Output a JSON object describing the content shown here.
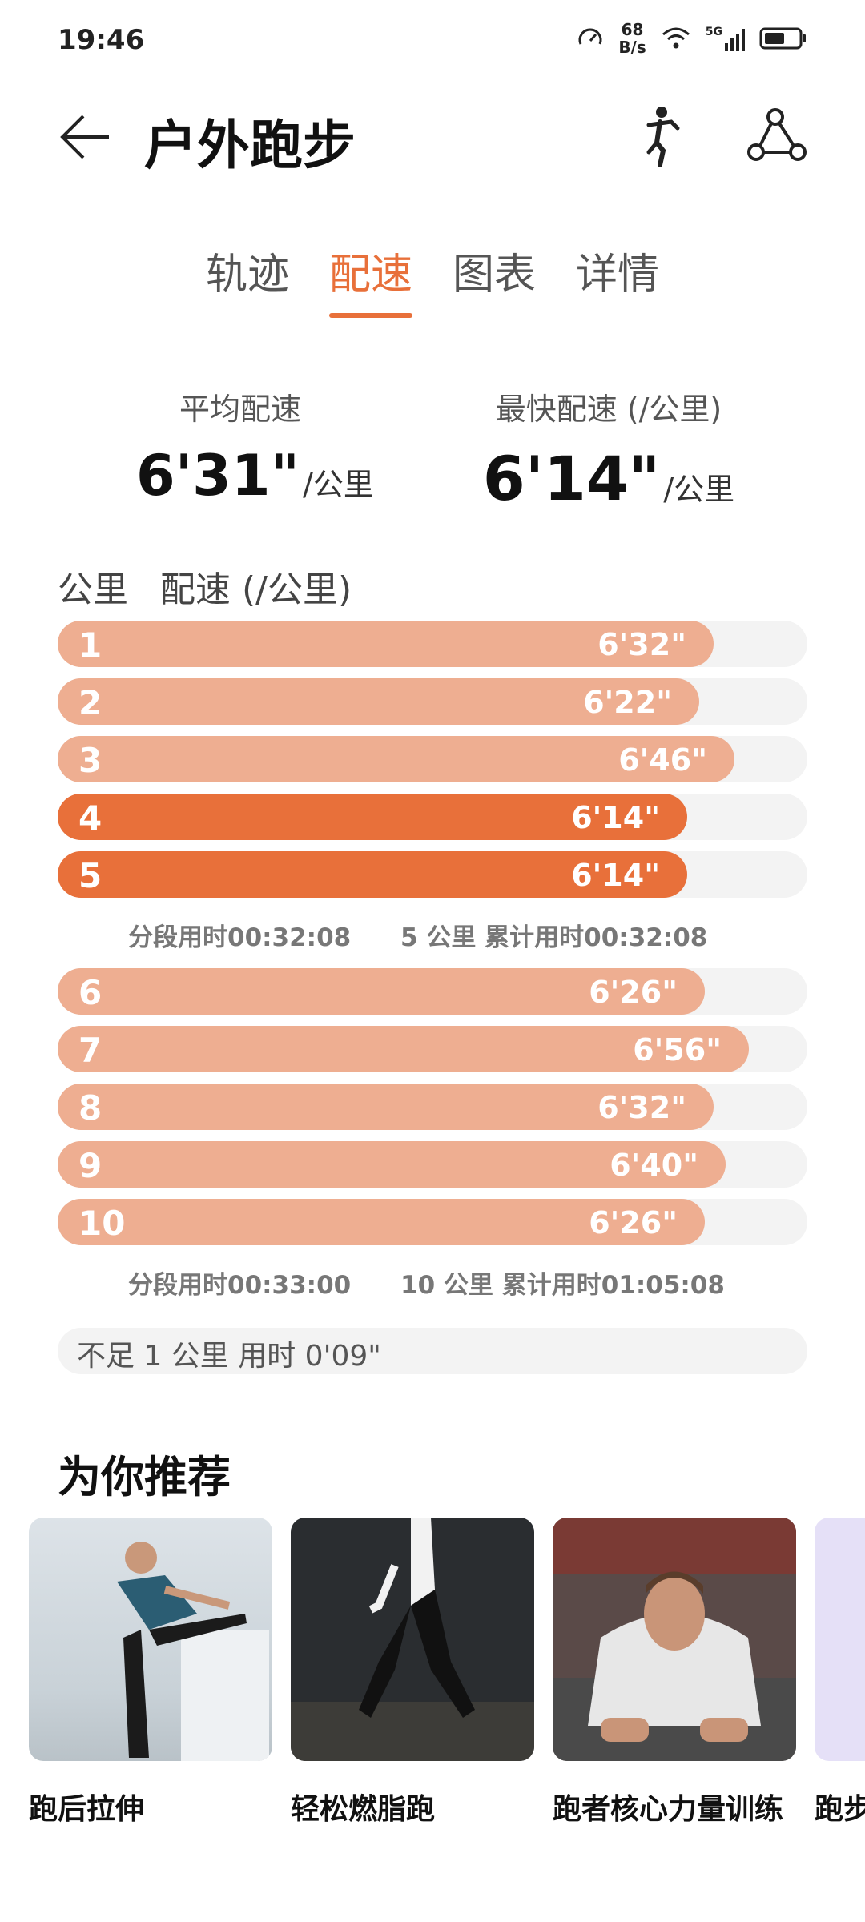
{
  "status_bar": {
    "time": "19:46",
    "net_speed_value": "68",
    "net_speed_unit": "B/s",
    "network": "5G"
  },
  "header": {
    "title": "户外跑步",
    "icons": [
      "back-arrow-icon",
      "runner-icon",
      "share-icon"
    ]
  },
  "tabs": [
    {
      "label": "轨迹",
      "active": false
    },
    {
      "label": "配速",
      "active": true
    },
    {
      "label": "图表",
      "active": false
    },
    {
      "label": "详情",
      "active": false
    }
  ],
  "summary": {
    "avg_label": "平均配速",
    "avg_value": "6'31\"",
    "avg_unit": "/公里",
    "fastest_label": "最快配速 (/公里)",
    "fastest_value": "6'14\"",
    "fastest_unit": "/公里"
  },
  "table": {
    "col_km": "公里",
    "col_pace": "配速 (/公里)",
    "groups": [
      {
        "rows": [
          {
            "km": "1",
            "pace": "6'32\"",
            "seconds": 392,
            "fastest": false
          },
          {
            "km": "2",
            "pace": "6'22\"",
            "seconds": 382,
            "fastest": false
          },
          {
            "km": "3",
            "pace": "6'46\"",
            "seconds": 406,
            "fastest": false
          },
          {
            "km": "4",
            "pace": "6'14\"",
            "seconds": 374,
            "fastest": true
          },
          {
            "km": "5",
            "pace": "6'14\"",
            "seconds": 374,
            "fastest": true
          }
        ],
        "segment_time": "分段用时00:32:08",
        "cumulative": "5 公里  累计用时00:32:08"
      },
      {
        "rows": [
          {
            "km": "6",
            "pace": "6'26\"",
            "seconds": 386,
            "fastest": false
          },
          {
            "km": "7",
            "pace": "6'56\"",
            "seconds": 416,
            "fastest": false
          },
          {
            "km": "8",
            "pace": "6'32\"",
            "seconds": 392,
            "fastest": false
          },
          {
            "km": "9",
            "pace": "6'40\"",
            "seconds": 400,
            "fastest": false
          },
          {
            "km": "10",
            "pace": "6'26\"",
            "seconds": 386,
            "fastest": false
          }
        ],
        "segment_time": "分段用时00:33:00",
        "cumulative": "10 公里  累计用时01:05:08"
      }
    ],
    "remainder": "不足 1 公里  用时 0'09\""
  },
  "recommend": {
    "title": "为你推荐",
    "cards": [
      {
        "label": "跑后拉伸"
      },
      {
        "label": "轻松燃脂跑"
      },
      {
        "label": "跑者核心力量训练"
      },
      {
        "label": "跑步"
      }
    ]
  },
  "colors": {
    "accent": "#e8703a",
    "bar": "#eeae91",
    "track": "#f3f3f3"
  }
}
